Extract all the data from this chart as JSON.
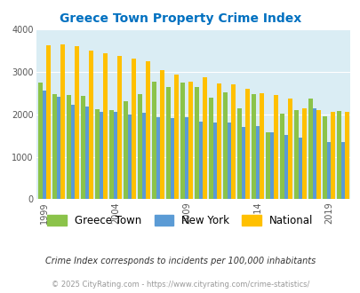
{
  "title": "Greece Town Property Crime Index",
  "years": [
    1999,
    2000,
    2001,
    2002,
    2003,
    2004,
    2005,
    2006,
    2007,
    2008,
    2009,
    2010,
    2011,
    2012,
    2013,
    2014,
    2015,
    2016,
    2017,
    2018,
    2019,
    2020
  ],
  "greece_town": [
    2750,
    2480,
    2450,
    2430,
    2110,
    2100,
    2310,
    2480,
    2760,
    2640,
    2750,
    2640,
    2400,
    2520,
    2130,
    2480,
    1580,
    2020,
    2100,
    2370,
    1950,
    2080
  ],
  "new_york": [
    2560,
    2420,
    2230,
    2180,
    2060,
    2050,
    1990,
    2030,
    1940,
    1920,
    1930,
    1830,
    1810,
    1800,
    1700,
    1720,
    1580,
    1510,
    1440,
    2150,
    1350,
    1350
  ],
  "national": [
    3620,
    3650,
    3600,
    3500,
    3440,
    3370,
    3320,
    3250,
    3040,
    2940,
    2760,
    2880,
    2730,
    2710,
    2590,
    2490,
    2450,
    2360,
    2130,
    2090,
    2060,
    2060
  ],
  "greece_color": "#8bc34a",
  "newyork_color": "#5b9bd5",
  "national_color": "#ffc000",
  "bg_color": "#daedf4",
  "title_color": "#0070c0",
  "plot_bg": "#daedf4",
  "ylim": [
    0,
    4000
  ],
  "yticks": [
    0,
    1000,
    2000,
    3000,
    4000
  ],
  "xtick_labels": [
    "1999",
    "2004",
    "2009",
    "2014",
    "2019"
  ],
  "xtick_year_indices": [
    0,
    5,
    10,
    15,
    20
  ],
  "legend_labels": [
    "Greece Town",
    "New York",
    "National"
  ],
  "note": "Crime Index corresponds to incidents per 100,000 inhabitants",
  "footer": "© 2025 CityRating.com - https://www.cityrating.com/crime-statistics/",
  "bar_width": 0.28
}
